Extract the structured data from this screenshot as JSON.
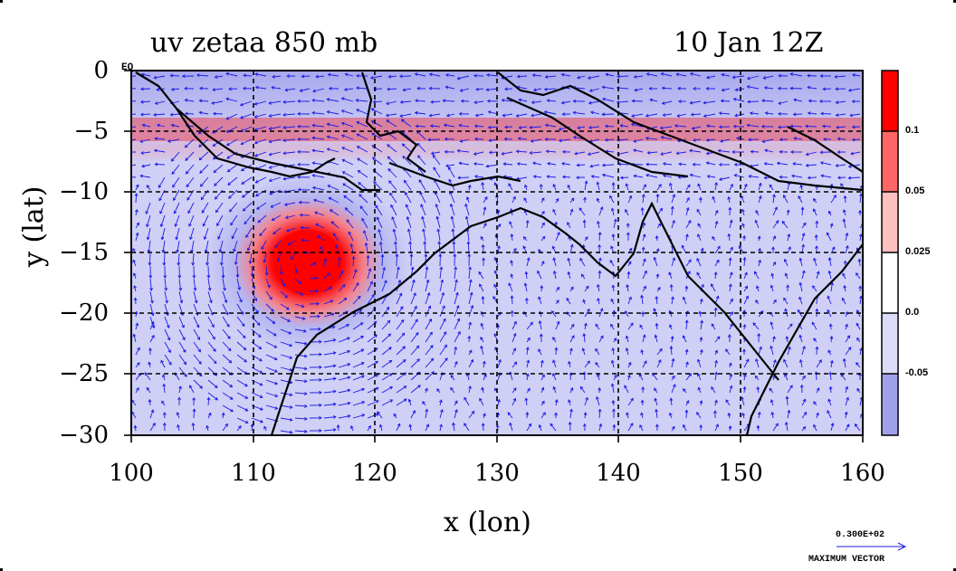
{
  "plot": {
    "title_left": "uv zetaa 850 mb",
    "title_right": "10 Jan 12Z",
    "xlabel": "x (lon)",
    "ylabel": "y (lat)",
    "equator_label": "EQ"
  },
  "x_ticks": [
    "100",
    "110",
    "120",
    "130",
    "140",
    "150",
    "160"
  ],
  "y_ticks": [
    "0",
    "−5",
    "−10",
    "−15",
    "−20",
    "−25",
    "−30"
  ],
  "colorbar": {
    "labels": [
      "0.1",
      "0.05",
      "0.025",
      "0.0",
      "-0.05"
    ],
    "colors": [
      "#ff0000",
      "#ff6666",
      "#ffc0c0",
      "#ffffff",
      "#dcdcf8",
      "#a0a0ec"
    ]
  },
  "max_vector": {
    "value": "0.300E+02",
    "label": "MAXIMUM VECTOR"
  },
  "colors": {
    "vector": "#1a1ae6",
    "coast": "#000000"
  },
  "chart_data": {
    "type": "heatmap",
    "title": "uv zetaa 850 mb",
    "xlabel": "x (lon)",
    "ylabel": "y (lat)",
    "xlim": [
      100,
      160
    ],
    "ylim": [
      -30,
      0
    ],
    "grid": true
  }
}
